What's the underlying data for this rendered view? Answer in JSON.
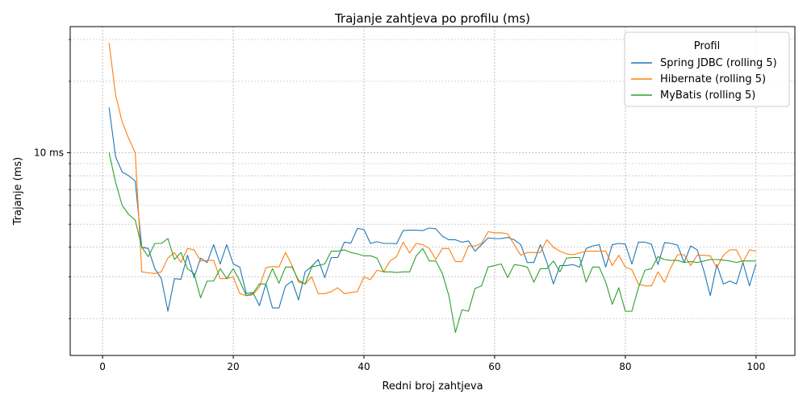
{
  "chart_data": {
    "type": "line",
    "title": "Trajanje zahtjeva po profilu (ms)",
    "xlabel": "Redni broj zahtjeva",
    "ylabel": "Trajanje (ms)",
    "y_scale": "log",
    "xlim": [
      -4.95,
      105.95
    ],
    "ylim": [
      1.4,
      34
    ],
    "x_ticks": [
      0,
      20,
      40,
      60,
      80,
      100
    ],
    "y_major_ticks": [
      10
    ],
    "y_major_tick_labels": [
      "10 ms"
    ],
    "y_minor_ticks": [
      2,
      3,
      4,
      5,
      6,
      7,
      8,
      9,
      20,
      30
    ],
    "grid": true,
    "legend": {
      "title": "Profil",
      "placement": "top-right"
    },
    "x": [
      1,
      2,
      3,
      4,
      5,
      6,
      7,
      8,
      9,
      10,
      11,
      12,
      13,
      14,
      15,
      16,
      17,
      18,
      19,
      20,
      21,
      22,
      23,
      24,
      25,
      26,
      27,
      28,
      29,
      30,
      31,
      32,
      33,
      34,
      35,
      36,
      37,
      38,
      39,
      40,
      41,
      42,
      43,
      44,
      45,
      46,
      47,
      48,
      49,
      50,
      51,
      52,
      53,
      54,
      55,
      56,
      57,
      58,
      59,
      60,
      61,
      62,
      63,
      64,
      65,
      66,
      67,
      68,
      69,
      70,
      71,
      72,
      73,
      74,
      75,
      76,
      77,
      78,
      79,
      80,
      81,
      82,
      83,
      84,
      85,
      86,
      87,
      88,
      89,
      90,
      91,
      92,
      93,
      94,
      95,
      96,
      97,
      98,
      99,
      100
    ],
    "series": [
      {
        "name": "Spring JDBC (rolling 5)",
        "color": "#1f77b4",
        "values": [
          15.5,
          9.6,
          8.3,
          8.0,
          7.6,
          4.0,
          3.95,
          3.25,
          2.95,
          2.15,
          2.95,
          2.93,
          3.7,
          2.98,
          3.6,
          3.45,
          4.1,
          3.4,
          4.1,
          3.4,
          3.3,
          2.55,
          2.58,
          2.27,
          2.8,
          2.22,
          2.22,
          2.75,
          2.88,
          2.4,
          3.15,
          3.32,
          3.55,
          2.98,
          3.62,
          3.62,
          4.2,
          4.16,
          4.8,
          4.75,
          4.15,
          4.22,
          4.15,
          4.15,
          4.14,
          4.7,
          4.72,
          4.72,
          4.7,
          4.82,
          4.78,
          4.45,
          4.3,
          4.3,
          4.2,
          4.25,
          3.85,
          4.1,
          4.38,
          4.35,
          4.35,
          4.4,
          4.3,
          4.1,
          3.45,
          3.45,
          4.1,
          3.45,
          2.8,
          3.35,
          3.35,
          3.38,
          3.3,
          3.95,
          4.05,
          4.1,
          3.3,
          4.1,
          4.15,
          4.12,
          3.4,
          4.2,
          4.2,
          4.12,
          3.38,
          4.18,
          4.15,
          4.08,
          3.45,
          4.05,
          3.9,
          3.2,
          2.5,
          3.38,
          2.8,
          2.88,
          2.8,
          3.45,
          2.75,
          3.4
        ]
      },
      {
        "name": "Hibernate (rolling 5)",
        "color": "#ff7f0e",
        "values": [
          29.0,
          17.5,
          13.5,
          11.5,
          10.0,
          3.15,
          3.12,
          3.1,
          3.15,
          3.6,
          3.8,
          3.45,
          3.95,
          3.9,
          3.5,
          3.52,
          3.52,
          2.95,
          2.95,
          3.0,
          2.55,
          2.5,
          2.52,
          2.72,
          3.28,
          3.32,
          3.3,
          3.8,
          3.35,
          2.85,
          2.8,
          3.0,
          2.55,
          2.55,
          2.6,
          2.7,
          2.55,
          2.58,
          2.6,
          3.0,
          2.92,
          3.2,
          3.15,
          3.5,
          3.65,
          4.2,
          3.78,
          4.15,
          4.1,
          3.95,
          3.55,
          3.95,
          3.95,
          3.48,
          3.48,
          4.05,
          4.05,
          4.15,
          4.65,
          4.6,
          4.6,
          4.55,
          4.1,
          3.7,
          3.8,
          3.8,
          3.8,
          4.3,
          4.0,
          3.85,
          3.75,
          3.72,
          3.78,
          3.85,
          3.85,
          3.85,
          3.85,
          3.35,
          3.7,
          3.3,
          3.22,
          2.8,
          2.75,
          2.75,
          3.15,
          2.85,
          3.3,
          3.72,
          3.72,
          3.35,
          3.7,
          3.7,
          3.68,
          3.28,
          3.7,
          3.9,
          3.9,
          3.45,
          3.9,
          3.85
        ]
      },
      {
        "name": "MyBatis (rolling 5)",
        "color": "#2ca02c",
        "values": [
          10.0,
          7.5,
          6.0,
          5.5,
          5.2,
          4.0,
          3.65,
          4.15,
          4.15,
          4.35,
          3.55,
          3.8,
          3.25,
          3.1,
          2.45,
          2.88,
          2.88,
          3.25,
          2.95,
          3.25,
          2.88,
          2.5,
          2.55,
          2.8,
          2.8,
          3.25,
          2.82,
          3.3,
          3.3,
          2.9,
          2.8,
          3.3,
          3.35,
          3.4,
          3.85,
          3.85,
          3.9,
          3.8,
          3.75,
          3.68,
          3.68,
          3.6,
          3.15,
          3.15,
          3.13,
          3.15,
          3.15,
          3.68,
          3.95,
          3.5,
          3.5,
          3.1,
          2.5,
          1.75,
          2.18,
          2.15,
          2.68,
          2.75,
          3.3,
          3.35,
          3.4,
          2.98,
          3.38,
          3.35,
          3.3,
          2.85,
          3.25,
          3.25,
          3.5,
          3.15,
          3.6,
          3.62,
          3.62,
          2.85,
          3.3,
          3.3,
          2.85,
          2.3,
          2.7,
          2.15,
          2.15,
          2.7,
          3.2,
          3.25,
          3.65,
          3.55,
          3.52,
          3.52,
          3.45,
          3.48,
          3.45,
          3.5,
          3.55,
          3.55,
          3.53,
          3.5,
          3.45,
          3.5,
          3.5,
          3.5
        ]
      }
    ]
  }
}
